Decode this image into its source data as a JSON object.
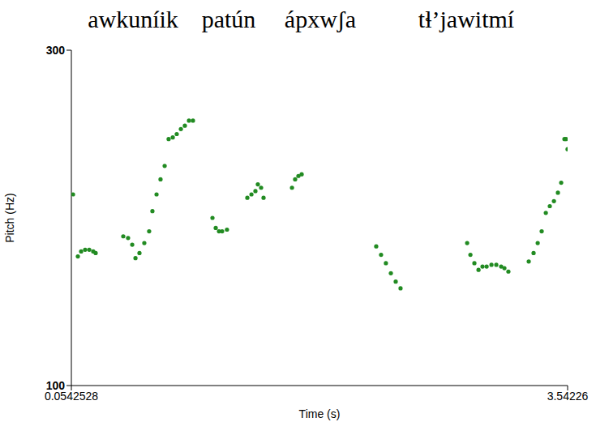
{
  "chart_data": {
    "type": "scatter",
    "annotations": [
      "awkuníik",
      "patún",
      "ápxwʃa",
      "tɬ’jawitmí"
    ],
    "x_label": "Time (s)",
    "y_label": "Pitch (Hz)",
    "xlim": [
      0.0542528,
      3.54226
    ],
    "xticks": [
      0.0542528,
      3.54226
    ],
    "ylim": [
      100,
      300
    ],
    "yticks": [
      100,
      300
    ],
    "grid": false,
    "color": "#228b22",
    "marker": "circle",
    "x": [
      0.066,
      0.1,
      0.123,
      0.151,
      0.18,
      0.208,
      0.225,
      0.419,
      0.453,
      0.482,
      0.505,
      0.533,
      0.567,
      0.601,
      0.624,
      0.653,
      0.681,
      0.71,
      0.738,
      0.767,
      0.795,
      0.824,
      0.852,
      0.881,
      0.909,
      1.046,
      1.069,
      1.092,
      1.114,
      1.148,
      1.291,
      1.32,
      1.348,
      1.365,
      1.388,
      1.405,
      1.605,
      1.627,
      1.65,
      1.673,
      2.197,
      2.231,
      2.265,
      2.3,
      2.334,
      2.368,
      2.836,
      2.859,
      2.887,
      2.916,
      2.944,
      2.973,
      3.007,
      3.041,
      3.075,
      3.098,
      3.126,
      3.269,
      3.303,
      3.332,
      3.36,
      3.389,
      3.417,
      3.446,
      3.474,
      3.497,
      3.52,
      3.531,
      3.542
    ],
    "values": [
      214,
      177,
      180,
      181,
      181,
      180,
      179,
      189,
      188,
      184,
      176,
      179,
      185,
      192,
      204,
      214,
      223,
      231,
      247,
      248,
      250,
      253,
      255,
      258,
      258,
      200,
      194,
      192,
      192,
      193,
      212,
      214,
      216,
      220,
      218,
      212,
      218,
      223,
      225,
      226,
      183,
      178,
      173,
      167,
      162,
      158,
      185,
      178,
      173,
      169,
      171,
      171,
      172,
      172,
      171,
      170,
      168,
      174,
      179,
      185,
      192,
      203,
      207,
      210,
      215,
      221,
      247,
      247,
      241
    ]
  }
}
